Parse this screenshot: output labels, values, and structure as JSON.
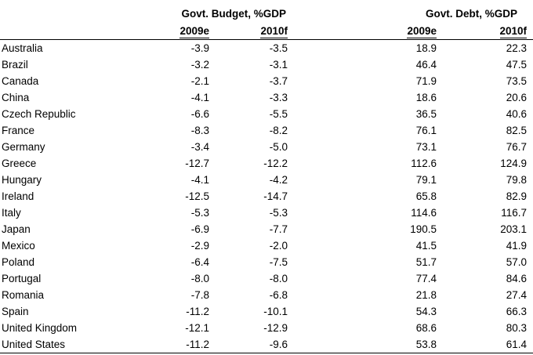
{
  "chart_data": {
    "type": "table",
    "column_groups": [
      {
        "label": "Govt. Budget, %GDP",
        "columns": [
          "2009e",
          "2010f"
        ]
      },
      {
        "label": "Govt. Debt, %GDP",
        "columns": [
          "2009e",
          "2010f"
        ]
      }
    ],
    "year_headers": [
      "2009e",
      "2010f",
      "2009e",
      "2010f"
    ],
    "value_format": "one_decimal",
    "rows": [
      {
        "country": "Australia",
        "values": [
          -3.9,
          -3.5,
          18.9,
          22.3
        ]
      },
      {
        "country": "Brazil",
        "values": [
          -3.2,
          -3.1,
          46.4,
          47.5
        ]
      },
      {
        "country": "Canada",
        "values": [
          -2.1,
          -3.7,
          71.9,
          73.5
        ]
      },
      {
        "country": "China",
        "values": [
          -4.1,
          -3.3,
          18.6,
          20.6
        ]
      },
      {
        "country": "Czech Republic",
        "values": [
          -6.6,
          -5.5,
          36.5,
          40.6
        ]
      },
      {
        "country": "France",
        "values": [
          -8.3,
          -8.2,
          76.1,
          82.5
        ]
      },
      {
        "country": "Germany",
        "values": [
          -3.4,
          -5.0,
          73.1,
          76.7
        ]
      },
      {
        "country": "Greece",
        "values": [
          -12.7,
          -12.2,
          112.6,
          124.9
        ]
      },
      {
        "country": "Hungary",
        "values": [
          -4.1,
          -4.2,
          79.1,
          79.8
        ]
      },
      {
        "country": "Ireland",
        "values": [
          -12.5,
          -14.7,
          65.8,
          82.9
        ]
      },
      {
        "country": "Italy",
        "values": [
          -5.3,
          -5.3,
          114.6,
          116.7
        ]
      },
      {
        "country": "Japan",
        "values": [
          -6.9,
          -7.7,
          190.5,
          203.1
        ]
      },
      {
        "country": "Mexico",
        "values": [
          -2.9,
          -2.0,
          41.5,
          41.9
        ]
      },
      {
        "country": "Poland",
        "values": [
          -6.4,
          -7.5,
          51.7,
          57.0
        ]
      },
      {
        "country": "Portugal",
        "values": [
          -8.0,
          -8.0,
          77.4,
          84.6
        ]
      },
      {
        "country": "Romania",
        "values": [
          -7.8,
          -6.8,
          21.8,
          27.4
        ]
      },
      {
        "country": "Spain",
        "values": [
          -11.2,
          -10.1,
          54.3,
          66.3
        ]
      },
      {
        "country": "United Kingdom",
        "values": [
          -12.1,
          -12.9,
          68.6,
          80.3
        ]
      },
      {
        "country": "United States",
        "values": [
          -11.2,
          -9.6,
          53.8,
          61.4
        ]
      }
    ]
  }
}
